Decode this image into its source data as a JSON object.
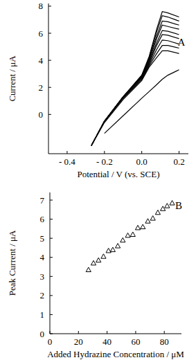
{
  "chart_data": [
    {
      "type": "line",
      "annotations": [
        "A"
      ],
      "x_label": "Potential / V (vs. SCE)",
      "y_label": "Current / μA",
      "x": [
        -0.27,
        -0.2,
        -0.1,
        0.0,
        0.04,
        0.08,
        0.11,
        0.14,
        0.2
      ],
      "series": [
        {
          "color": "#000000",
          "values": [
            -2.3,
            -0.5,
            1.3,
            2.9,
            4.3,
            6.3,
            7.6,
            7.5,
            7.2
          ]
        },
        {
          "color": "#000000",
          "values": [
            -2.3,
            -0.5,
            1.3,
            2.9,
            4.2,
            6.1,
            7.3,
            7.2,
            6.9
          ]
        },
        {
          "color": "#000000",
          "values": [
            -2.3,
            -0.5,
            1.3,
            2.8,
            4.1,
            5.8,
            6.9,
            6.85,
            6.6
          ]
        },
        {
          "color": "#000000",
          "values": [
            -2.3,
            -0.5,
            1.3,
            2.8,
            4.0,
            5.6,
            6.6,
            6.5,
            6.3
          ]
        },
        {
          "color": "#000000",
          "values": [
            -2.3,
            -0.5,
            1.3,
            2.7,
            3.9,
            5.3,
            6.2,
            6.15,
            5.9
          ]
        },
        {
          "color": "#000000",
          "values": [
            -2.3,
            -0.5,
            1.3,
            2.7,
            3.8,
            5.1,
            5.9,
            5.85,
            5.6
          ]
        },
        {
          "color": "#000000",
          "values": [
            -2.3,
            -0.5,
            1.2,
            2.6,
            3.7,
            4.8,
            5.5,
            5.45,
            5.2
          ]
        },
        {
          "color": "#000000",
          "values": [
            -2.3,
            -0.5,
            1.2,
            2.6,
            3.6,
            4.5,
            5.1,
            5.1,
            4.9
          ]
        },
        {
          "color": "#000000",
          "values": [
            -2.3,
            -0.6,
            1.1,
            2.5,
            3.5,
            4.2,
            4.7,
            4.7,
            4.5
          ]
        },
        {
          "color": "#000000",
          "values": [
            null,
            -1.4,
            -0.1,
            1.2,
            1.7,
            2.2,
            2.6,
            2.9,
            3.3
          ]
        }
      ],
      "xlim": [
        -0.5,
        0.25
      ],
      "xticks": [
        {
          "value": -0.4,
          "label": "- 0.4"
        },
        {
          "value": -0.2,
          "label": "- 0.2"
        },
        {
          "value": 0.0,
          "label": "0.0"
        },
        {
          "value": 0.2,
          "label": "0.2"
        }
      ],
      "ylim": [
        -2.9,
        8.2
      ],
      "yticks": [
        0,
        2,
        4,
        6,
        8
      ],
      "grid": false
    },
    {
      "type": "scatter",
      "annotations": [
        "B"
      ],
      "x_label": "Added Hydrazine Concentration / μM",
      "y_label": "Peak Current / μA",
      "marker": "triangle",
      "color": "#000000",
      "x": [
        27,
        30.5,
        34,
        37.5,
        41,
        44,
        47.5,
        51,
        54.5,
        58,
        61.5,
        65,
        68.5,
        72,
        75.5,
        79,
        82,
        85.5
      ],
      "values": [
        3.35,
        3.7,
        3.85,
        4.05,
        4.35,
        4.4,
        4.6,
        4.9,
        5.15,
        5.2,
        5.55,
        5.6,
        5.9,
        6.05,
        6.35,
        6.55,
        6.7,
        6.85
      ],
      "xlim": [
        0,
        92
      ],
      "xticks": [
        0,
        20,
        40,
        60,
        80
      ],
      "ylim": [
        0,
        7.4
      ],
      "yticks": [
        0,
        1,
        2,
        3,
        4,
        5,
        6,
        7
      ],
      "grid": false
    }
  ]
}
